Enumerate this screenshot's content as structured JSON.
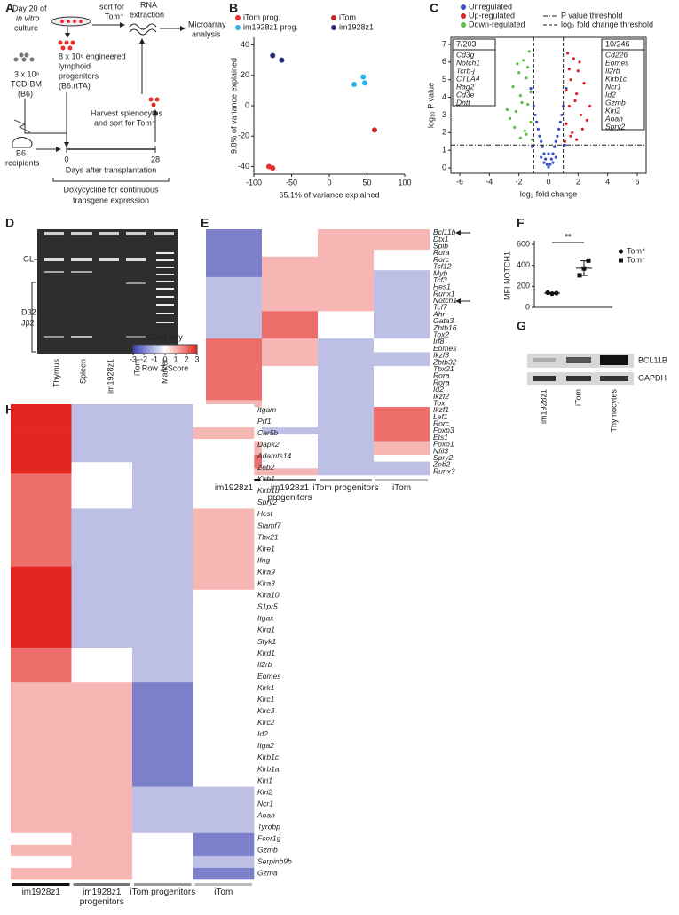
{
  "figure": {
    "panel_labels": [
      "A",
      "B",
      "C",
      "D",
      "E",
      "F",
      "G",
      "H"
    ]
  },
  "diagram_a": {
    "culture": [
      "Day 20 of",
      "in vitro",
      "culture"
    ],
    "sort": [
      "sort for",
      "Tom⁺"
    ],
    "rna": [
      "RNA",
      "extraction"
    ],
    "microarray": [
      "Microarray",
      "analysis"
    ],
    "bm": [
      "3 x 10⁶",
      "TCD-BM",
      "(B6)"
    ],
    "progenitors": [
      "8 x 10⁶ engineered",
      "lymphoid",
      "progenitors",
      "(B6.rtTA)"
    ],
    "harvest": [
      "Harvest splenocytes",
      "and sort for Tom⁺"
    ],
    "recipients": [
      "B6",
      "recipients"
    ],
    "timeline": [
      "0",
      "28"
    ],
    "timeline_label": "Days after transplantation",
    "dox": [
      "Doxycycline for continuous",
      "transgene expression"
    ]
  },
  "gel_d": {
    "bands": [
      "GL",
      "Dβ2 -",
      "Jβ2"
    ],
    "lanes": [
      "Thymus",
      "Spleen",
      "im1928z1",
      "iTom",
      "Marker"
    ]
  },
  "blot_g": {
    "proteins": [
      "BCL11B",
      "GAPDH"
    ],
    "lanes": [
      "im1928z1",
      "iTom",
      "Thymocytes"
    ]
  },
  "chart_data": [
    {
      "type": "scatter",
      "x_label": "65.1% of variance explained",
      "y_label": "9.8% of variance explained",
      "xlim": [
        -100,
        100
      ],
      "xticks": [
        -100,
        -50,
        0,
        50,
        100
      ],
      "ylim": [
        -45,
        45
      ],
      "yticks": [
        -40,
        -20,
        0,
        20,
        40
      ],
      "series": [
        {
          "name": "iTom prog.",
          "color": "#e8302e",
          "x": [
            -80,
            -75
          ],
          "y": [
            -40,
            -41
          ]
        },
        {
          "name": "im1928z1 prog.",
          "color": "#29b3e8",
          "x": [
            33,
            45,
            47
          ],
          "y": [
            14,
            19,
            15
          ]
        },
        {
          "name": "iTom",
          "color": "#c22a2a",
          "x": [
            60
          ],
          "y": [
            -16
          ]
        },
        {
          "name": "im1928z1",
          "color": "#2c2f7a",
          "x": [
            -75,
            -63
          ],
          "y": [
            33,
            30
          ]
        }
      ]
    },
    {
      "type": "volcano",
      "x_label": "log₂ fold change",
      "y_label": "log₁₀ P value",
      "xlim": [
        -6.6,
        6.6
      ],
      "xticks": [
        -6,
        -4,
        -2,
        0,
        2,
        4,
        6
      ],
      "ylim": [
        -0.3,
        7.4
      ],
      "yticks": [
        0,
        1,
        2,
        3,
        4,
        5,
        6,
        7
      ],
      "series": [
        {
          "name": "Unregulated",
          "color": "#3a4fbf",
          "x": [
            -1.2,
            -1,
            -0.9,
            -0.8,
            -0.7,
            -0.6,
            -0.5,
            -0.4,
            -0.3,
            -0.2,
            -0.1,
            0,
            0.1,
            0.2,
            0.3,
            0.4,
            0.5,
            0.6,
            0.7,
            0.8,
            0.9,
            1,
            1.2,
            -0.5,
            0.5,
            -0.3,
            0.3,
            0,
            -1.1,
            1.1
          ],
          "y": [
            4.5,
            3.5,
            3,
            2.6,
            2.2,
            1.8,
            1.5,
            1.2,
            0.8,
            0.5,
            0.2,
            0.05,
            0.2,
            0.5,
            0.8,
            1.2,
            1.5,
            1.8,
            2.2,
            2.6,
            3,
            3.5,
            4.5,
            0.6,
            0.6,
            0.3,
            0.3,
            0.8,
            1.2,
            1.3
          ]
        },
        {
          "name": "Up-regulated",
          "color": "#d7262b",
          "x": [
            1.1,
            1.2,
            1.4,
            1.5,
            1.7,
            1.9,
            2,
            2.2,
            2.4,
            2.6,
            1.3,
            1.6,
            1.8,
            2.1,
            2.3,
            1.2,
            1.5,
            2.8,
            1.4,
            1.9
          ],
          "y": [
            1.5,
            2.5,
            3.5,
            5,
            6.2,
            4.2,
            5.5,
            3,
            4.8,
            2.7,
            6.5,
            2,
            3.8,
            6,
            2.2,
            4.4,
            1.8,
            3.5,
            5.6,
            1.6
          ]
        },
        {
          "name": "Down-regulated",
          "color": "#5bbf4a",
          "x": [
            -1.1,
            -1.2,
            -1.4,
            -1.5,
            -1.7,
            -1.9,
            -2,
            -2.2,
            -2.4,
            -2.6,
            -1.3,
            -1.6,
            -1.8,
            -2.1,
            -2.3,
            -1.2,
            -1.5,
            -2.8,
            -1.4,
            -1.9
          ],
          "y": [
            1.6,
            2.6,
            3.6,
            5.1,
            6.1,
            4.1,
            5.4,
            3.2,
            4.6,
            2.8,
            6.6,
            2.1,
            3.7,
            5.9,
            2.3,
            4.3,
            1.9,
            3.3,
            5.7,
            1.7
          ]
        }
      ],
      "thresholds": {
        "p_value": 1.3,
        "fold_change": [
          -1,
          1
        ],
        "labels": [
          "P value threshold",
          "log₂ fold change threshold"
        ]
      },
      "boxes": [
        {
          "count": "7/203",
          "color": "#3a8a3a",
          "genes": [
            "Cd3g",
            "Notch1",
            "Tcrb-j",
            "CTLA4",
            "Rag2",
            "Cd3e",
            "Dntt"
          ]
        },
        {
          "count": "10/246",
          "color": "#b8282a",
          "genes": [
            "Cd226",
            "Eomes",
            "Il2rb",
            "Klrb1c",
            "Ncr1",
            "Id2",
            "Gzmb",
            "Klri2",
            "Aoah",
            "Spry2"
          ]
        }
      ]
    },
    {
      "type": "heatmap",
      "categories": [
        "im1928z1",
        "im1928z1 progenitors",
        "iTom progenitors",
        "iTom"
      ],
      "group_colors": [
        "#111111",
        "#777777",
        "#999999",
        "#bbbbbb"
      ],
      "rows": [
        "Bcl11b",
        "Dtx1",
        "Spib",
        "Rora",
        "Rorc",
        "Tcf12",
        "Myb",
        "Tcf3",
        "Hes1",
        "Runx1",
        "Notch1",
        "Tcf7",
        "Ahr",
        "Gata3",
        "Zbtb16",
        "Tox2",
        "Irf8",
        "Eomes",
        "Ikzf3",
        "Zbtb32",
        "Tbx21",
        "Rora",
        "Rora",
        "Id2",
        "Ikzf2",
        "Tox",
        "Ikzf1",
        "Lef1",
        "Rorc",
        "Foxp3",
        "Ets1",
        "Foxo1",
        "Nfil3",
        "Spry2",
        "Zeb2",
        "Runx3"
      ],
      "values": [
        [
          -2,
          0,
          1,
          1
        ],
        [
          -2,
          0,
          1,
          1
        ],
        [
          -2,
          0,
          1,
          1
        ],
        [
          -2,
          0,
          1,
          0
        ],
        [
          -2,
          1,
          1,
          0
        ],
        [
          -2,
          1,
          1,
          0
        ],
        [
          -2,
          1,
          1,
          -1
        ],
        [
          -1,
          1,
          1,
          -1
        ],
        [
          -1,
          1,
          1,
          -1
        ],
        [
          -1,
          1,
          1,
          -1
        ],
        [
          -1,
          1,
          1,
          -1
        ],
        [
          -1,
          1,
          1,
          -1
        ],
        [
          -1,
          2,
          0,
          -1
        ],
        [
          -1,
          2,
          0,
          -1
        ],
        [
          -1,
          2,
          0,
          -1
        ],
        [
          -1,
          2,
          0,
          -1
        ],
        [
          2,
          1,
          -1,
          0
        ],
        [
          2,
          1,
          -1,
          0
        ],
        [
          2,
          1,
          -1,
          -1
        ],
        [
          2,
          1,
          -1,
          -1
        ],
        [
          2,
          0,
          -1,
          0
        ],
        [
          2,
          0,
          -1,
          0
        ],
        [
          2,
          0,
          -1,
          0
        ],
        [
          2,
          0,
          -1,
          0
        ],
        [
          2,
          0,
          -1,
          0
        ],
        [
          1,
          0,
          -1,
          0
        ],
        [
          0,
          0,
          -1,
          2
        ],
        [
          0,
          0,
          -1,
          2
        ],
        [
          0,
          0,
          -1,
          2
        ],
        [
          0,
          -1,
          -1,
          2
        ],
        [
          0,
          0,
          -1,
          2
        ],
        [
          1,
          0,
          -1,
          1
        ],
        [
          1,
          0,
          -1,
          1
        ],
        [
          2,
          0,
          -1,
          0
        ],
        [
          2,
          0,
          -1,
          -1
        ],
        [
          1,
          1,
          -1,
          -1
        ]
      ],
      "zlim": [
        -3,
        3
      ],
      "zticks": [
        -3,
        -2,
        -1,
        0,
        1,
        2,
        3
      ],
      "colors": [
        "#3a3fb0",
        "#ffffff",
        "#e3261f"
      ],
      "key_title": "Color Key",
      "key_label": "Row Z-Score"
    },
    {
      "type": "dot",
      "y_label": "MFI NOTCH1",
      "ylim": [
        0,
        600
      ],
      "yticks": [
        0,
        200,
        400,
        600
      ],
      "significance": "**",
      "series": [
        {
          "name": "Tom⁺",
          "marker": "circle",
          "values": [
            140,
            130,
            135
          ],
          "mean": 135,
          "sem": 5
        },
        {
          "name": "Tom⁻",
          "marker": "square",
          "values": [
            305,
            370,
            445
          ],
          "mean": 373,
          "sem": 70
        }
      ]
    },
    {
      "type": "heatmap",
      "categories": [
        "im1928z1",
        "im1928z1 progenitors",
        "iTom progenitors",
        "iTom"
      ],
      "group_colors": [
        "#111111",
        "#777777",
        "#999999",
        "#bbbbbb"
      ],
      "rows": [
        "Itgam",
        "Prf1",
        "Car5b",
        "Dapk2",
        "Adamts14",
        "Zeb2",
        "Klrb1",
        "Klrb1b",
        "Spry2",
        "Hcst",
        "Slamf7",
        "Tbx21",
        "Klre1",
        "Ifng",
        "Klra9",
        "Klra3",
        "Klra10",
        "S1pr5",
        "Itgax",
        "Klrg1",
        "Styk1",
        "Klrd1",
        "Il2rb",
        "Eomes",
        "Klrk1",
        "Klrc1",
        "Klrc3",
        "Klrc2",
        "Id2",
        "Itga2",
        "Klrb1c",
        "Klrb1a",
        "Klri1",
        "Klri2",
        "Ncr1",
        "Aoah",
        "Tyrobp",
        "Fcer1g",
        "Gzmb",
        "Serpinb9b",
        "Gzma"
      ],
      "values": [
        [
          3,
          -1,
          -1,
          0
        ],
        [
          3,
          -1,
          -1,
          0
        ],
        [
          3,
          -1,
          -1,
          1
        ],
        [
          3,
          -1,
          -1,
          0
        ],
        [
          3,
          -1,
          -1,
          0
        ],
        [
          3,
          0,
          -1,
          0
        ],
        [
          2,
          0,
          -1,
          0
        ],
        [
          2,
          0,
          -1,
          0
        ],
        [
          2,
          0,
          -1,
          0
        ],
        [
          2,
          -1,
          -1,
          1
        ],
        [
          2,
          -1,
          -1,
          1
        ],
        [
          2,
          -1,
          -1,
          1
        ],
        [
          2,
          -1,
          -1,
          1
        ],
        [
          2,
          -1,
          -1,
          1
        ],
        [
          3,
          -1,
          -1,
          1
        ],
        [
          3,
          -1,
          -1,
          1
        ],
        [
          3,
          -1,
          -1,
          0
        ],
        [
          3,
          -1,
          -1,
          0
        ],
        [
          3,
          -1,
          -1,
          0
        ],
        [
          3,
          -1,
          -1,
          0
        ],
        [
          3,
          -1,
          -1,
          0
        ],
        [
          2,
          0,
          -1,
          0
        ],
        [
          2,
          0,
          -1,
          0
        ],
        [
          2,
          0,
          -1,
          0
        ],
        [
          1,
          1,
          -2,
          0
        ],
        [
          1,
          1,
          -2,
          0
        ],
        [
          1,
          1,
          -2,
          0
        ],
        [
          1,
          1,
          -2,
          0
        ],
        [
          1,
          1,
          -2,
          0
        ],
        [
          1,
          1,
          -2,
          0
        ],
        [
          1,
          1,
          -2,
          0
        ],
        [
          1,
          1,
          -2,
          0
        ],
        [
          1,
          1,
          -2,
          0
        ],
        [
          1,
          1,
          -1,
          -1
        ],
        [
          1,
          1,
          -1,
          -1
        ],
        [
          1,
          1,
          -1,
          -1
        ],
        [
          1,
          1,
          -1,
          -1
        ],
        [
          0,
          1,
          0,
          -2
        ],
        [
          1,
          1,
          0,
          -2
        ],
        [
          0,
          1,
          0,
          -1
        ],
        [
          1,
          1,
          0,
          -2
        ]
      ],
      "zlim": [
        -3,
        3
      ],
      "colors": [
        "#3a3fb0",
        "#ffffff",
        "#e3261f"
      ]
    }
  ]
}
